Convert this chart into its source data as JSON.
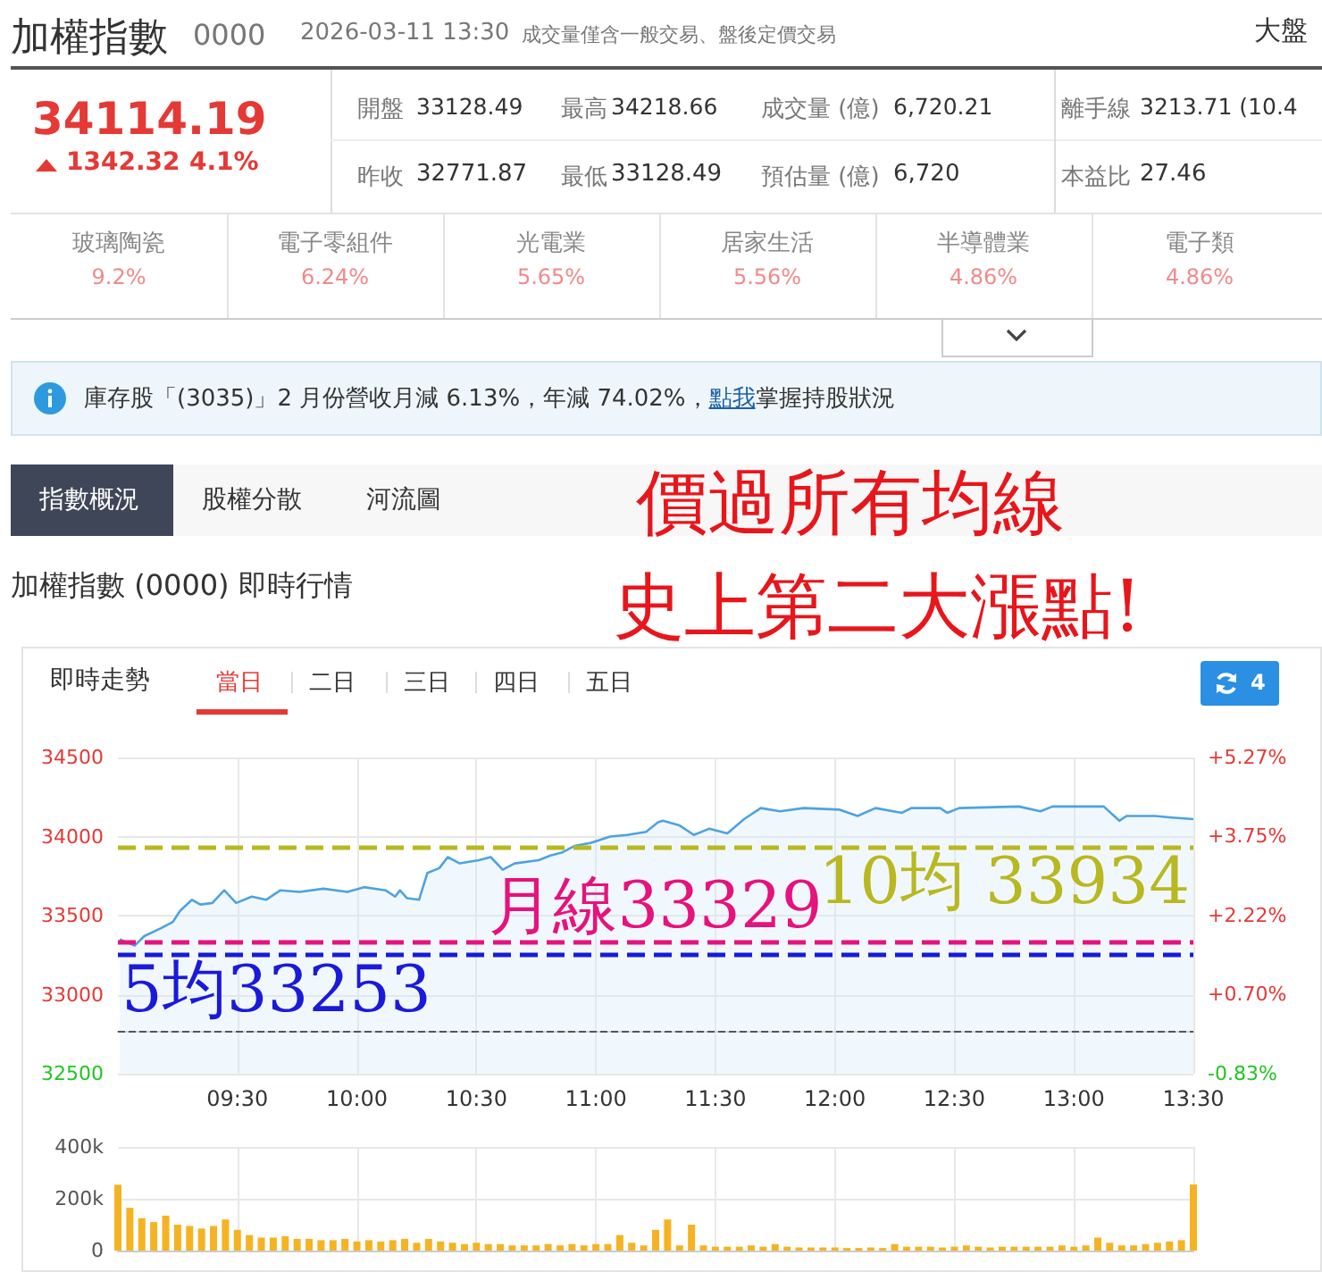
{
  "chart_data": [
    {
      "type": "other",
      "title": "加權指數",
      "annotations": [
        "0000",
        "2026-03-11 13:30",
        "成交量僅含一般交易、盤後定價交易",
        "大盤",
        "34114.19",
        "1342.32",
        "4.1%",
        "開盤",
        "33128.49",
        "最高",
        "34218.66",
        "成交量 (億)",
        "6,720.21",
        "離手線",
        "3213.71 (10.4",
        "昨收",
        "32771.87",
        "最低",
        "33128.49",
        "預估量 (億)",
        "6,720",
        "本益比",
        "27.46",
        "玻璃陶瓷",
        "9.2%",
        "電子零組件",
        "6.24%",
        "光電業",
        "5.65%",
        "居家生活",
        "5.56%",
        "半導體業",
        "4.86%",
        "電子類",
        "4.86%",
        "庫存股「(3035)」2 月份營收月減 6.13%，年減 74.02%，",
        "點我",
        "掌握持股狀況",
        "指數概況",
        "股權分散",
        "河流圖",
        "價過所有均線",
        "史上第二大漲點!",
        "加權指數 (0000) 即時行情",
        "即時走勢",
        "當日",
        "二日",
        "三日",
        "四日",
        "五日",
        "4"
      ]
    },
    {
      "type": "area",
      "color": "#4da3e0",
      "x": [
        9.0075,
        9.07,
        9.11,
        9.18,
        9.23,
        9.26,
        9.31,
        9.345,
        9.395,
        9.445,
        9.495,
        9.56,
        9.62,
        9.68,
        9.76,
        9.86,
        9.96,
        10.03,
        10.12,
        10.16,
        10.18,
        10.21,
        10.26,
        10.295,
        10.345,
        10.38,
        10.43,
        10.51,
        10.56,
        10.61,
        10.66,
        10.76,
        10.81,
        10.86,
        10.91,
        10.98,
        11.06,
        11.13,
        11.21,
        11.26,
        11.28,
        11.35,
        11.41,
        11.475,
        11.55,
        11.62,
        11.69,
        11.77,
        11.87,
        12.02,
        12.095,
        12.17,
        12.28,
        12.32,
        12.44,
        12.47,
        12.52,
        12.77,
        12.86,
        12.91,
        13.125,
        13.19,
        13.22,
        13.34,
        13.41,
        13.5
      ],
      "values": [
        33350,
        33310,
        33370,
        33420,
        33460,
        33530,
        33600,
        33570,
        33580,
        33660,
        33580,
        33620,
        33600,
        33660,
        33650,
        33670,
        33650,
        33680,
        33660,
        33620,
        33660,
        33610,
        33600,
        33770,
        33800,
        33870,
        33830,
        33850,
        33870,
        33790,
        33830,
        33850,
        33880,
        33900,
        33940,
        33960,
        34000,
        34010,
        34030,
        34090,
        34100,
        34070,
        34010,
        34050,
        34020,
        34110,
        34180,
        34160,
        34180,
        34170,
        34130,
        34180,
        34150,
        34180,
        34180,
        34150,
        34180,
        34190,
        34160,
        34190,
        34190,
        34100,
        34130,
        34130,
        34120,
        34110
      ],
      "xlim": [
        9,
        13.5
      ],
      "xticks": [
        {
          "value": 9.5,
          "label": "09:30"
        },
        {
          "value": 10,
          "label": "10:00"
        },
        {
          "value": 10.5,
          "label": "10:30"
        },
        {
          "value": 11,
          "label": "11:00"
        },
        {
          "value": 11.5,
          "label": "11:30"
        },
        {
          "value": 12,
          "label": "12:00"
        },
        {
          "value": 12.5,
          "label": "12:30"
        },
        {
          "value": 13,
          "label": "13:00"
        },
        {
          "value": 13.5,
          "label": "13:30"
        }
      ],
      "ylim": [
        32500,
        34500
      ],
      "yticks": [
        32500,
        33000,
        33500,
        34000,
        34500
      ],
      "y2lim": [
        -0.83,
        5.27
      ],
      "y2ticks": [
        {
          "value": -0.83,
          "label": "-0.83%"
        },
        {
          "value": 0.7,
          "label": "+0.70%"
        },
        {
          "value": 2.22,
          "label": "+2.22%"
        },
        {
          "value": 3.75,
          "label": "+3.75%"
        },
        {
          "value": 5.27,
          "label": "+5.27%"
        }
      ],
      "grid": true,
      "marker": "none",
      "ref_lines": [
        {
          "axis": "y",
          "value": 32771.87,
          "color": "#555555",
          "line_style": "dashed"
        },
        {
          "axis": "y",
          "value": 33934,
          "label": "10均 33934",
          "color": "#b8b820",
          "line_style": "dashed"
        },
        {
          "axis": "y",
          "value": 33329,
          "label": "月線33329",
          "color": "#e6127e",
          "line_style": "dashed"
        },
        {
          "axis": "y",
          "value": 33253,
          "label": "5均33253",
          "color": "#1a1adb",
          "line_style": "dashed"
        }
      ]
    },
    {
      "type": "bar",
      "color": "#f5b323",
      "x": [
        9,
        9.05,
        9.1,
        9.15,
        9.2,
        9.25,
        9.3,
        9.35,
        9.4,
        9.45,
        9.5,
        9.55,
        9.6,
        9.65,
        9.7,
        9.75,
        9.8,
        9.85,
        9.9,
        9.95,
        10,
        10.05,
        10.1,
        10.15,
        10.2,
        10.25,
        10.3,
        10.35,
        10.4,
        10.45,
        10.5,
        10.55,
        10.6,
        10.65,
        10.7,
        10.75,
        10.8,
        10.85,
        10.9,
        10.95,
        11,
        11.05,
        11.1,
        11.15,
        11.2,
        11.25,
        11.3,
        11.35,
        11.4,
        11.45,
        11.5,
        11.55,
        11.6,
        11.65,
        11.7,
        11.75,
        11.8,
        11.85,
        11.9,
        11.95,
        12,
        12.05,
        12.1,
        12.15,
        12.2,
        12.25,
        12.3,
        12.35,
        12.4,
        12.45,
        12.5,
        12.55,
        12.6,
        12.65,
        12.7,
        12.75,
        12.8,
        12.85,
        12.9,
        12.95,
        13,
        13.05,
        13.1,
        13.15,
        13.2,
        13.25,
        13.3,
        13.35,
        13.4,
        13.45,
        13.5
      ],
      "values": [
        254000,
        165000,
        125000,
        110000,
        135000,
        100000,
        95000,
        85000,
        95000,
        120000,
        80000,
        60000,
        50000,
        50000,
        55000,
        45000,
        45000,
        40000,
        40000,
        45000,
        35000,
        40000,
        35000,
        40000,
        45000,
        30000,
        45000,
        35000,
        30000,
        25000,
        30000,
        25000,
        25000,
        20000,
        20000,
        20000,
        25000,
        20000,
        25000,
        20000,
        25000,
        25000,
        60000,
        30000,
        20000,
        80000,
        120000,
        20000,
        100000,
        20000,
        15000,
        15000,
        15000,
        20000,
        15000,
        25000,
        15000,
        12000,
        12000,
        12000,
        12000,
        10000,
        10000,
        12000,
        10000,
        25000,
        15000,
        15000,
        15000,
        12000,
        15000,
        20000,
        15000,
        12000,
        15000,
        15000,
        15000,
        15000,
        15000,
        20000,
        15000,
        20000,
        50000,
        30000,
        20000,
        20000,
        25000,
        30000,
        35000,
        40000,
        255000
      ],
      "xlim": [
        9,
        13.5
      ],
      "xticks": [
        {
          "value": 9.5,
          "label": null
        },
        {
          "value": 10,
          "label": null
        },
        {
          "value": 10.5,
          "label": null
        },
        {
          "value": 11,
          "label": null
        },
        {
          "value": 11.5,
          "label": null
        },
        {
          "value": 12,
          "label": null
        },
        {
          "value": 12.5,
          "label": null
        },
        {
          "value": 13,
          "label": null
        },
        {
          "value": 13.5,
          "label": null
        }
      ],
      "ylim": [
        0,
        400000
      ],
      "yticks": [
        {
          "value": 0,
          "label": "0"
        },
        {
          "value": 200000,
          "label": "200k"
        },
        {
          "value": 400000,
          "label": "400k"
        }
      ],
      "grid": true,
      "tick_labels": "y"
    }
  ]
}
